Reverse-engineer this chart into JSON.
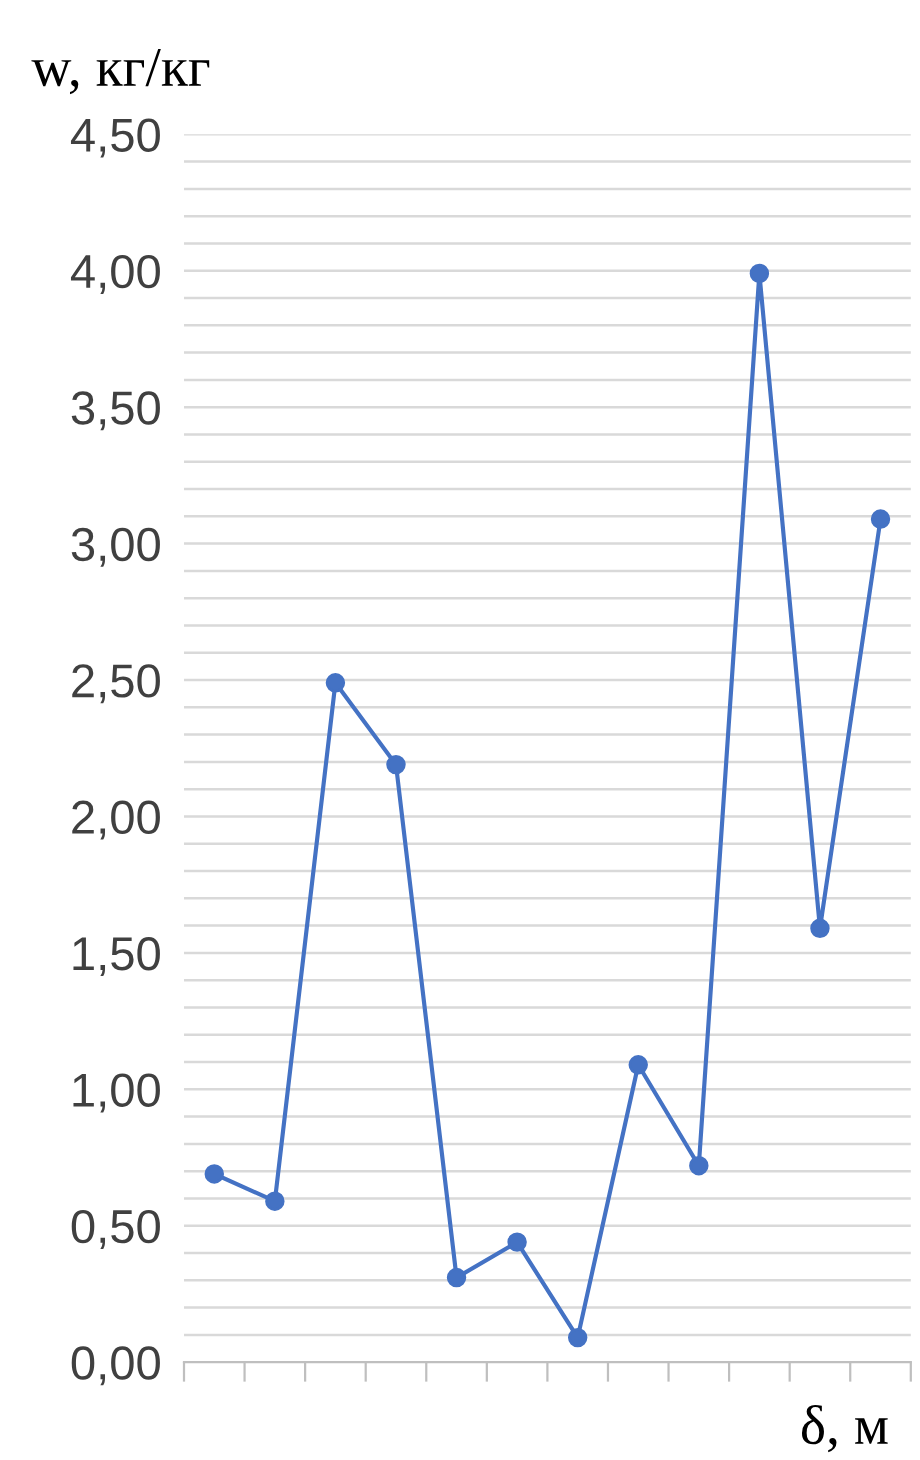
{
  "chart_data": {
    "type": "line",
    "xlabel": "δ, м",
    "ylabel": "w, кг/кг",
    "categories": [
      null,
      null,
      null,
      null,
      null,
      null,
      null,
      null,
      null,
      null,
      null,
      null
    ],
    "series": [
      {
        "color": "#4472c4",
        "values": [
          0.69,
          0.59,
          2.49,
          2.19,
          0.31,
          0.44,
          0.09,
          1.09,
          0.72,
          3.99,
          1.59,
          3.09
        ]
      }
    ],
    "ylim": [
      0,
      4.5
    ],
    "yticks": [
      {
        "value": 0,
        "label": "0,00"
      },
      {
        "value": 0.1,
        "label": null
      },
      {
        "value": 0.2,
        "label": null
      },
      {
        "value": 0.3,
        "label": null
      },
      {
        "value": 0.4,
        "label": null
      },
      {
        "value": 0.5,
        "label": "0,50"
      },
      {
        "value": 0.6,
        "label": null
      },
      {
        "value": 0.7,
        "label": null
      },
      {
        "value": 0.8,
        "label": null
      },
      {
        "value": 0.9,
        "label": null
      },
      {
        "value": 1.0,
        "label": "1,00"
      },
      {
        "value": 1.1,
        "label": null
      },
      {
        "value": 1.2,
        "label": null
      },
      {
        "value": 1.3,
        "label": null
      },
      {
        "value": 1.4,
        "label": null
      },
      {
        "value": 1.5,
        "label": "1,50"
      },
      {
        "value": 1.6,
        "label": null
      },
      {
        "value": 1.7,
        "label": null
      },
      {
        "value": 1.8,
        "label": null
      },
      {
        "value": 1.9,
        "label": null
      },
      {
        "value": 2.0,
        "label": "2,00"
      },
      {
        "value": 2.1,
        "label": null
      },
      {
        "value": 2.2,
        "label": null
      },
      {
        "value": 2.3,
        "label": null
      },
      {
        "value": 2.4,
        "label": null
      },
      {
        "value": 2.5,
        "label": "2,50"
      },
      {
        "value": 2.6,
        "label": null
      },
      {
        "value": 2.7,
        "label": null
      },
      {
        "value": 2.8,
        "label": null
      },
      {
        "value": 2.9,
        "label": null
      },
      {
        "value": 3.0,
        "label": "3,00"
      },
      {
        "value": 3.1,
        "label": null
      },
      {
        "value": 3.2,
        "label": null
      },
      {
        "value": 3.3,
        "label": null
      },
      {
        "value": 3.4,
        "label": null
      },
      {
        "value": 3.5,
        "label": "3,50"
      },
      {
        "value": 3.6,
        "label": null
      },
      {
        "value": 3.7,
        "label": null
      },
      {
        "value": 3.8,
        "label": null
      },
      {
        "value": 3.9,
        "label": null
      },
      {
        "value": 4.0,
        "label": "4,00"
      },
      {
        "value": 4.1,
        "label": null
      },
      {
        "value": 4.2,
        "label": null
      },
      {
        "value": 4.3,
        "label": null
      },
      {
        "value": 4.4,
        "label": null
      },
      {
        "value": 4.5,
        "label": "4,50"
      }
    ],
    "grid": "y",
    "marker": "circle",
    "line_style": "solid",
    "legend": false,
    "tick_labels": "y"
  }
}
